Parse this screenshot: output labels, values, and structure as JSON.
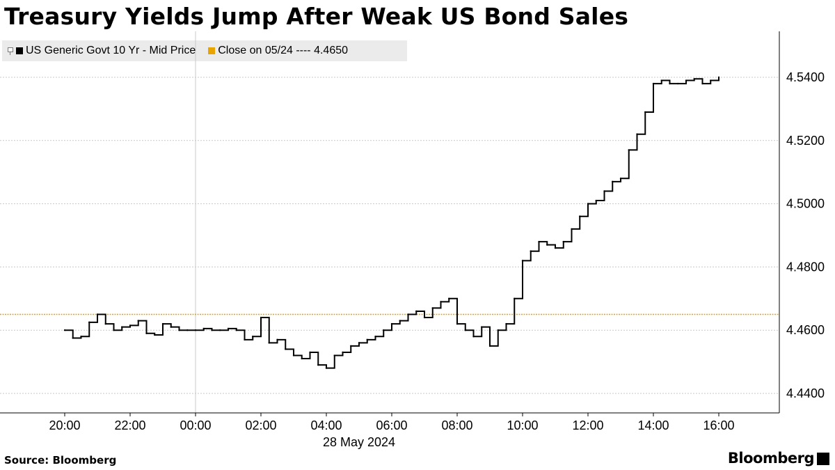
{
  "header": {
    "title": "Treasury Yields Jump After Weak US Bond Sales"
  },
  "legend": {
    "series_label": "US Generic Govt 10 Yr - Mid Price",
    "close_label": "Close on 05/24 ---- 4.4650"
  },
  "footer": {
    "source": "Source: Bloomberg",
    "brand": "Bloomberg"
  },
  "colors": {
    "series": "#000000",
    "close_line": "#e8a400",
    "grid": "#c8c8c8",
    "legend_bg": "#ebebeb"
  },
  "chart_data": {
    "type": "line",
    "title": "Treasury Yields Jump After Weak US Bond Sales",
    "xlabel": "28 May 2024",
    "ylabel": "",
    "x_ticks": [
      "20:00",
      "22:00",
      "00:00",
      "02:00",
      "04:00",
      "06:00",
      "08:00",
      "10:00",
      "12:00",
      "14:00",
      "16:00"
    ],
    "x_tick_hours": [
      0,
      2,
      4,
      6,
      8,
      10,
      12,
      14,
      16,
      18,
      20
    ],
    "x_axis_note": "hours elapsed since 20:00 on 27 May 2024",
    "y_ticks": [
      4.44,
      4.46,
      4.48,
      4.5,
      4.52,
      4.54
    ],
    "y_tick_labels": [
      "4.4400",
      "4.4600",
      "4.4800",
      "4.5000",
      "4.5200",
      "4.5400"
    ],
    "ylim": [
      4.4366,
      4.5512
    ],
    "xlim": [
      -1.0,
      22.0
    ],
    "grid": true,
    "legend_position": "top-left",
    "reference_lines": [
      {
        "name": "Close on 05/24",
        "value": 4.465
      }
    ],
    "series": [
      {
        "name": "US Generic Govt 10 Yr - Mid Price",
        "x": [
          0.0,
          0.25,
          0.5,
          0.75,
          1.0,
          1.25,
          1.5,
          1.75,
          2.0,
          2.25,
          2.5,
          2.75,
          3.0,
          3.25,
          3.5,
          3.75,
          4.0,
          4.25,
          4.5,
          4.75,
          5.0,
          5.25,
          5.5,
          5.75,
          6.0,
          6.25,
          6.5,
          6.75,
          7.0,
          7.25,
          7.5,
          7.75,
          8.0,
          8.25,
          8.5,
          8.75,
          9.0,
          9.25,
          9.5,
          9.75,
          10.0,
          10.25,
          10.5,
          10.75,
          11.0,
          11.25,
          11.5,
          11.75,
          12.0,
          12.25,
          12.5,
          12.75,
          13.0,
          13.25,
          13.5,
          13.75,
          14.0,
          14.25,
          14.5,
          14.75,
          15.0,
          15.25,
          15.5,
          15.75,
          16.0,
          16.25,
          16.5,
          16.75,
          17.0,
          17.25,
          17.5,
          17.75,
          18.0,
          18.25,
          18.5,
          18.75,
          19.0,
          19.25,
          19.5,
          19.75,
          20.0
        ],
        "values": [
          4.46,
          4.4575,
          4.458,
          4.4625,
          4.465,
          4.462,
          4.46,
          4.461,
          4.4615,
          4.463,
          4.459,
          4.4585,
          4.462,
          4.461,
          4.46,
          4.46,
          4.46,
          4.4605,
          4.46,
          4.46,
          4.4605,
          4.46,
          4.457,
          4.458,
          4.464,
          4.456,
          4.457,
          4.454,
          4.452,
          4.451,
          4.453,
          4.449,
          4.448,
          4.452,
          4.453,
          4.455,
          4.456,
          4.457,
          4.458,
          4.46,
          4.462,
          4.463,
          4.465,
          4.466,
          4.464,
          4.467,
          4.469,
          4.47,
          4.462,
          4.46,
          4.458,
          4.461,
          4.455,
          4.46,
          4.462,
          4.47,
          4.482,
          4.485,
          4.488,
          4.487,
          4.486,
          4.488,
          4.492,
          4.496,
          4.5,
          4.501,
          4.504,
          4.507,
          4.508,
          4.517,
          4.522,
          4.529,
          4.538,
          4.539,
          4.538,
          4.538,
          4.539,
          4.5395,
          4.538,
          4.539,
          4.54
        ]
      }
    ]
  }
}
